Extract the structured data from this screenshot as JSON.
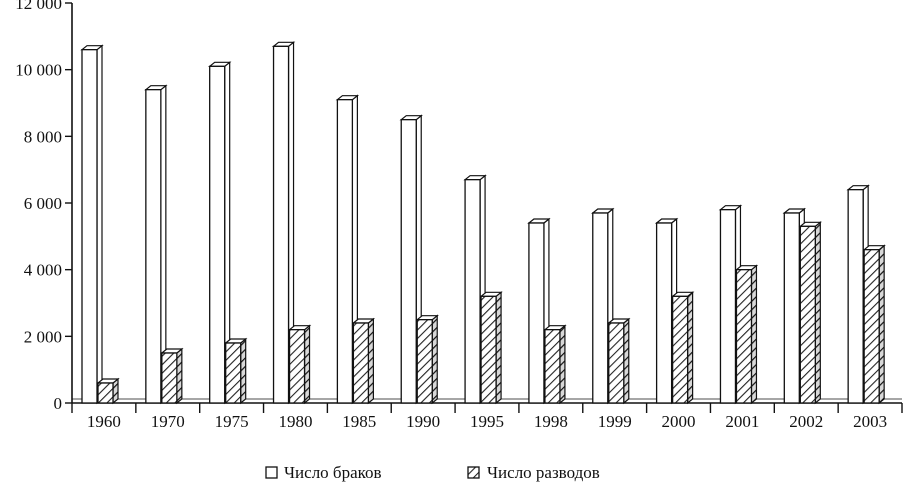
{
  "chart_data": {
    "type": "bar",
    "categories": [
      "1960",
      "1970",
      "1975",
      "1980",
      "1985",
      "1990",
      "1995",
      "1998",
      "1999",
      "2000",
      "2001",
      "2002",
      "2003"
    ],
    "series": [
      {
        "name": "Число браков",
        "values": [
          10600,
          9400,
          10100,
          10700,
          9100,
          8500,
          6700,
          5400,
          5700,
          5400,
          5800,
          5700,
          6400
        ],
        "color": "#ffffff",
        "pattern": "none"
      },
      {
        "name": "Число разводов",
        "values": [
          600,
          1500,
          1800,
          2200,
          2400,
          2500,
          3200,
          2200,
          2400,
          3200,
          4000,
          5300,
          4600
        ],
        "color": "#ffffff",
        "pattern": "hatched"
      }
    ],
    "y_ticks": [
      "0",
      "2 000",
      "4 000",
      "6 000",
      "8 000",
      "10 000",
      "12 000"
    ],
    "y_tick_values": [
      0,
      2000,
      4000,
      6000,
      8000,
      10000,
      12000
    ],
    "ylim": [
      0,
      12000
    ],
    "title": "",
    "xlabel": "",
    "ylabel": "",
    "grid": false,
    "legend_position": "bottom",
    "style": "3d-bars"
  }
}
